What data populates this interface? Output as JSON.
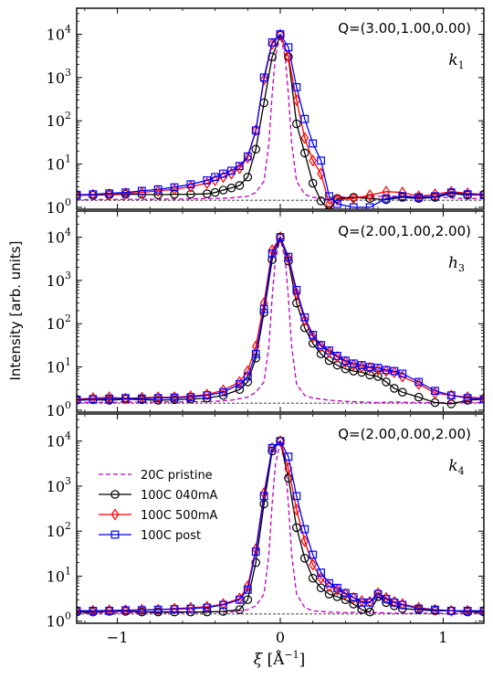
{
  "figure": {
    "ylabel": "Intensity [arb. units]",
    "xlabel_symbol": "ξ",
    "xlabel_unit_main": "Å",
    "xlabel_unit_sup": "−1",
    "x_tick_labels": [
      "−1",
      "0",
      "1"
    ],
    "y_tick_base": "10",
    "y_tick_exponents": [
      "0",
      "1",
      "2",
      "3",
      "4"
    ]
  },
  "legend": {
    "placement": "bottom panel, center-left",
    "entries": [
      {
        "label": "20C pristine",
        "color": "#bf00bf",
        "marker": "none",
        "dash": "dashed"
      },
      {
        "label": "100C 040mA",
        "color": "#000000",
        "marker": "circle",
        "dash": "solid"
      },
      {
        "label": "100C 500mA",
        "color": "#ff0000",
        "marker": "diamond",
        "dash": "solid"
      },
      {
        "label": "100C post",
        "color": "#0000ff",
        "marker": "square",
        "dash": "solid"
      }
    ]
  },
  "chart_data": [
    {
      "type": "line",
      "yscale": "log",
      "xlim": [
        -1.25,
        1.25
      ],
      "ylim": [
        0.9,
        40000
      ],
      "x_ticks": [
        -1,
        0,
        1
      ],
      "y_ticks": [
        1,
        10,
        100,
        1000,
        10000
      ],
      "grid": false,
      "annotation": "Q=(3.00,1.00,0.00)",
      "label_main": "k",
      "label_sub": "1",
      "baseline": 1.45,
      "series": [
        {
          "name": "20C pristine",
          "x": [
            -1.25,
            -1.0,
            -0.6,
            -0.4,
            -0.3,
            -0.2,
            -0.15,
            -0.1,
            -0.07,
            -0.05,
            -0.03,
            0.0,
            0.03,
            0.05,
            0.07,
            0.1,
            0.15,
            0.2,
            0.3,
            0.35,
            0.4,
            0.6,
            0.8,
            1.0,
            1.1,
            1.25
          ],
          "y": [
            1.5,
            1.52,
            1.55,
            1.6,
            1.65,
            1.8,
            2.2,
            4,
            30,
            400,
            3000,
            9500,
            3000,
            400,
            30,
            4,
            2,
            1.7,
            1.6,
            1.8,
            1.7,
            1.8,
            1.8,
            1.7,
            1.6,
            1.6
          ]
        },
        {
          "name": "100C 040mA",
          "x": [
            -1.25,
            -1.15,
            -1.05,
            -0.95,
            -0.85,
            -0.75,
            -0.65,
            -0.55,
            -0.45,
            -0.4,
            -0.35,
            -0.3,
            -0.25,
            -0.2,
            -0.15,
            -0.1,
            -0.05,
            0.0,
            0.05,
            0.1,
            0.15,
            0.2,
            0.25,
            0.3,
            0.35,
            0.45,
            0.55,
            0.65,
            0.75,
            0.85,
            0.95,
            1.05,
            1.15,
            1.25
          ],
          "y": [
            1.9,
            1.9,
            1.95,
            2.0,
            2.0,
            1.95,
            2.0,
            2.0,
            2.05,
            2.2,
            2.5,
            2.8,
            3.2,
            5,
            22,
            260,
            3000,
            9500,
            3000,
            85,
            18,
            3.6,
            1.4,
            0.85,
            1.6,
            1.7,
            1.6,
            1.5,
            1.7,
            1.6,
            1.7,
            2.1,
            1.9,
            2.0
          ]
        },
        {
          "name": "100C 500mA",
          "x": [
            -1.25,
            -1.15,
            -1.05,
            -0.95,
            -0.85,
            -0.75,
            -0.65,
            -0.55,
            -0.45,
            -0.4,
            -0.35,
            -0.3,
            -0.25,
            -0.2,
            -0.15,
            -0.1,
            -0.05,
            0.0,
            0.05,
            0.1,
            0.15,
            0.2,
            0.25,
            0.3,
            0.35,
            0.45,
            0.55,
            0.65,
            0.75,
            0.85,
            0.95,
            1.05,
            1.15,
            1.25
          ],
          "y": [
            1.9,
            1.95,
            2.0,
            2.1,
            2.2,
            2.4,
            2.6,
            3.0,
            3.6,
            4.2,
            5,
            6,
            8,
            14,
            60,
            900,
            6000,
            9800,
            3000,
            300,
            40,
            12,
            6,
            1.2,
            1.5,
            1.6,
            1.9,
            2.3,
            2.2,
            1.8,
            2.0,
            2.3,
            2.1,
            2.0
          ]
        },
        {
          "name": "100C post",
          "x": [
            -1.25,
            -1.15,
            -1.05,
            -0.95,
            -0.85,
            -0.75,
            -0.65,
            -0.55,
            -0.45,
            -0.4,
            -0.35,
            -0.3,
            -0.25,
            -0.2,
            -0.15,
            -0.1,
            -0.05,
            0.0,
            0.05,
            0.1,
            0.15,
            0.2,
            0.25,
            0.3,
            0.35,
            0.45,
            0.55,
            0.65,
            0.75,
            0.85,
            0.95,
            1.05,
            1.15,
            1.25
          ],
          "y": [
            1.95,
            2.0,
            2.1,
            2.2,
            2.4,
            2.6,
            2.9,
            3.4,
            4.2,
            5,
            6,
            7,
            9,
            15,
            60,
            1000,
            6500,
            10000,
            5000,
            600,
            110,
            30,
            12,
            1.8,
            1.2,
            1.0,
            1.0,
            1.6,
            1.8,
            1.7,
            1.8,
            2.2,
            2.0,
            1.9
          ]
        }
      ]
    },
    {
      "type": "line",
      "yscale": "log",
      "xlim": [
        -1.25,
        1.25
      ],
      "ylim": [
        0.9,
        40000
      ],
      "x_ticks": [
        -1,
        0,
        1
      ],
      "y_ticks": [
        1,
        10,
        100,
        1000,
        10000
      ],
      "grid": false,
      "annotation": "Q=(2.00,1.00,2.00)",
      "label_main": "h",
      "label_sub": "3",
      "baseline": 1.45,
      "series": [
        {
          "name": "20C pristine",
          "x": [
            -1.25,
            -0.6,
            -0.4,
            -0.3,
            -0.2,
            -0.15,
            -0.1,
            -0.07,
            -0.05,
            -0.03,
            0.0,
            0.03,
            0.05,
            0.07,
            0.1,
            0.15,
            0.2,
            0.3,
            0.4,
            0.5,
            0.6,
            0.7,
            0.8,
            0.9,
            1.0,
            1.25
          ],
          "y": [
            1.5,
            1.55,
            1.6,
            1.7,
            2.0,
            2.6,
            4.5,
            30,
            400,
            3000,
            9500,
            3000,
            400,
            30,
            4,
            2.2,
            1.9,
            1.7,
            1.6,
            1.55,
            1.5,
            1.55,
            1.5,
            1.5,
            1.5,
            1.5
          ]
        },
        {
          "name": "100C 040mA",
          "x": [
            -1.25,
            -1.15,
            -1.05,
            -0.95,
            -0.85,
            -0.75,
            -0.65,
            -0.55,
            -0.45,
            -0.35,
            -0.25,
            -0.2,
            -0.15,
            -0.1,
            -0.05,
            0.0,
            0.05,
            0.1,
            0.15,
            0.2,
            0.25,
            0.3,
            0.35,
            0.4,
            0.45,
            0.5,
            0.55,
            0.6,
            0.65,
            0.7,
            0.75,
            0.85,
            0.95,
            1.05,
            1.15,
            1.25
          ],
          "y": [
            1.7,
            1.75,
            1.7,
            1.8,
            1.75,
            1.7,
            1.75,
            1.8,
            1.9,
            2.2,
            3,
            4.5,
            16,
            180,
            3000,
            9500,
            2800,
            300,
            80,
            35,
            20,
            14,
            11,
            9,
            8,
            7.5,
            6.5,
            6,
            4.5,
            3.2,
            2.6,
            2.0,
            1.5,
            1.4,
            1.7,
            1.8
          ]
        },
        {
          "name": "100C 500mA",
          "x": [
            -1.25,
            -1.15,
            -1.05,
            -0.95,
            -0.85,
            -0.75,
            -0.65,
            -0.55,
            -0.45,
            -0.35,
            -0.25,
            -0.2,
            -0.15,
            -0.1,
            -0.05,
            0.0,
            0.05,
            0.1,
            0.15,
            0.2,
            0.25,
            0.3,
            0.35,
            0.4,
            0.45,
            0.5,
            0.55,
            0.6,
            0.65,
            0.7,
            0.75,
            0.85,
            0.95,
            1.05,
            1.15,
            1.25
          ],
          "y": [
            1.8,
            1.9,
            2.0,
            1.85,
            1.95,
            2.0,
            2.0,
            2.1,
            2.3,
            2.9,
            4.5,
            8,
            30,
            300,
            5000,
            10000,
            3200,
            500,
            120,
            50,
            30,
            22,
            17,
            13,
            11,
            10,
            9.5,
            8.5,
            8,
            7.5,
            6,
            4,
            2.5,
            2.2,
            2.0,
            1.9
          ]
        },
        {
          "name": "100C post",
          "x": [
            -1.25,
            -1.15,
            -1.05,
            -0.95,
            -0.85,
            -0.75,
            -0.65,
            -0.55,
            -0.45,
            -0.35,
            -0.25,
            -0.2,
            -0.15,
            -0.1,
            -0.05,
            0.0,
            0.05,
            0.1,
            0.15,
            0.2,
            0.25,
            0.3,
            0.35,
            0.4,
            0.45,
            0.5,
            0.55,
            0.6,
            0.65,
            0.7,
            0.75,
            0.85,
            0.95,
            1.05,
            1.15,
            1.25
          ],
          "y": [
            1.75,
            1.8,
            1.85,
            1.9,
            1.85,
            1.9,
            1.95,
            2.0,
            2.2,
            2.6,
            4,
            6,
            20,
            220,
            4200,
            10000,
            3500,
            600,
            140,
            55,
            32,
            24,
            18,
            14,
            12,
            11,
            10,
            9.5,
            8.5,
            8,
            7,
            4.5,
            2.8,
            2.2,
            1.9,
            1.8
          ]
        }
      ]
    },
    {
      "type": "line",
      "yscale": "log",
      "xlim": [
        -1.25,
        1.25
      ],
      "ylim": [
        0.9,
        40000
      ],
      "x_ticks": [
        -1,
        0,
        1
      ],
      "y_ticks": [
        1,
        10,
        100,
        1000,
        10000
      ],
      "grid": false,
      "annotation": "Q=(2.00,0.00,2.00)",
      "label_main": "k",
      "label_sub": "4",
      "baseline": 1.45,
      "series": [
        {
          "name": "20C pristine",
          "x": [
            -1.25,
            -0.6,
            -0.4,
            -0.3,
            -0.2,
            -0.15,
            -0.1,
            -0.07,
            -0.05,
            -0.03,
            0.0,
            0.03,
            0.05,
            0.07,
            0.1,
            0.15,
            0.2,
            0.3,
            0.4,
            0.5,
            0.6,
            0.7,
            0.8,
            1.0,
            1.25
          ],
          "y": [
            1.5,
            1.55,
            1.6,
            1.6,
            1.8,
            2.2,
            4,
            30,
            400,
            3000,
            9500,
            3000,
            400,
            30,
            4,
            2,
            1.7,
            1.6,
            1.55,
            1.6,
            1.55,
            1.5,
            1.5,
            1.5,
            1.5
          ]
        },
        {
          "name": "100C 040mA",
          "x": [
            -1.25,
            -1.15,
            -1.05,
            -0.95,
            -0.85,
            -0.75,
            -0.65,
            -0.55,
            -0.45,
            -0.35,
            -0.25,
            -0.2,
            -0.15,
            -0.1,
            -0.05,
            0.0,
            0.05,
            0.1,
            0.15,
            0.2,
            0.25,
            0.3,
            0.35,
            0.4,
            0.45,
            0.5,
            0.55,
            0.6,
            0.65,
            0.7,
            0.75,
            0.85,
            0.95,
            1.05,
            1.15,
            1.25
          ],
          "y": [
            1.6,
            1.6,
            1.65,
            1.65,
            1.6,
            1.6,
            1.6,
            1.6,
            1.6,
            1.65,
            1.8,
            3,
            20,
            400,
            6000,
            10000,
            1500,
            120,
            25,
            9,
            5.5,
            4,
            3.5,
            3,
            2.4,
            1.8,
            1.6,
            3.5,
            2.6,
            2.2,
            1.9,
            1.8,
            1.7,
            1.7,
            1.6,
            1.6
          ]
        },
        {
          "name": "100C 500mA",
          "x": [
            -1.25,
            -1.15,
            -1.05,
            -0.95,
            -0.85,
            -0.75,
            -0.65,
            -0.55,
            -0.45,
            -0.35,
            -0.25,
            -0.2,
            -0.15,
            -0.1,
            -0.05,
            0.0,
            0.05,
            0.1,
            0.15,
            0.2,
            0.25,
            0.3,
            0.35,
            0.4,
            0.45,
            0.5,
            0.55,
            0.6,
            0.65,
            0.7,
            0.75,
            0.85,
            0.95,
            1.05,
            1.15,
            1.25
          ],
          "y": [
            1.7,
            1.7,
            1.75,
            1.75,
            1.8,
            1.8,
            1.9,
            2.0,
            2.1,
            2.4,
            3.2,
            6,
            40,
            700,
            7000,
            10000,
            2500,
            300,
            60,
            18,
            9,
            6,
            5,
            4,
            3.3,
            2.8,
            2.7,
            4.2,
            3.3,
            2.7,
            2.4,
            2.0,
            1.8,
            1.7,
            1.7,
            1.7
          ]
        },
        {
          "name": "100C post",
          "x": [
            -1.25,
            -1.15,
            -1.05,
            -0.95,
            -0.85,
            -0.75,
            -0.65,
            -0.55,
            -0.45,
            -0.35,
            -0.25,
            -0.2,
            -0.15,
            -0.1,
            -0.05,
            0.0,
            0.05,
            0.1,
            0.15,
            0.2,
            0.25,
            0.3,
            0.35,
            0.4,
            0.45,
            0.5,
            0.55,
            0.6,
            0.65,
            0.7,
            0.75,
            0.85,
            0.95,
            1.05,
            1.15,
            1.25
          ],
          "y": [
            1.7,
            1.7,
            1.7,
            1.75,
            1.75,
            1.8,
            1.85,
            1.9,
            2.0,
            2.3,
            3.0,
            5,
            35,
            600,
            7000,
            10000,
            4500,
            600,
            110,
            30,
            12,
            7,
            5.5,
            4.2,
            3.4,
            2.6,
            2.6,
            4.0,
            3.1,
            2.6,
            2.3,
            1.9,
            1.8,
            1.7,
            1.7,
            1.7
          ]
        }
      ]
    }
  ]
}
